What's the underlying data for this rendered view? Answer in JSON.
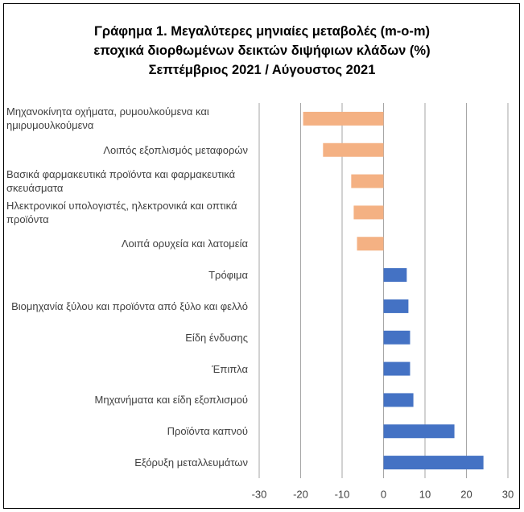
{
  "chart_data": {
    "type": "barh",
    "title": [
      "Γράφημα 1. Μεγαλύτερες μηνιαίες μεταβολές (m-o-m)",
      "εποχικά διορθωμένων δεικτών διψήφιων κλάδων (%)",
      "Σεπτέμβριος 2021 / Αύγουστος 2021"
    ],
    "categories": [
      "Μηχανοκίνητα οχήματα, ρυμουλκούμενα και ημιρυμουλκούμενα",
      "Λοιπός εξοπλισμός μεταφορών",
      "Βασικά φαρμακευτικά προϊόντα και φαρμακευτικά σκευάσματα",
      "Ηλεκτρονικοί υπολογιστές, ηλεκτρονικά και οπτικά προϊόντα",
      "Λοιπά ορυχεία και λατομεία",
      "Τρόφιμα",
      "Βιομηχανία ξύλου και προϊόντα από ξύλο και φελλό",
      "Είδη ένδυσης",
      "Έπιπλα",
      "Μηχανήματα και είδη εξοπλισμού",
      "Προϊόντα καπνού",
      "Εξόρυξη μεταλλευμάτων"
    ],
    "values": [
      -19.4,
      -14.6,
      -7.8,
      -7.2,
      -6.4,
      5.6,
      6.0,
      6.4,
      6.4,
      7.2,
      17.1,
      24.1
    ],
    "colors": [
      "#f4b183",
      "#f4b183",
      "#f4b183",
      "#f4b183",
      "#f4b183",
      "#4472c4",
      "#4472c4",
      "#4472c4",
      "#4472c4",
      "#4472c4",
      "#4472c4",
      "#4472c4"
    ],
    "xlim": [
      -30,
      30
    ],
    "xticks": [
      -30,
      -20,
      -10,
      0,
      10,
      20,
      30
    ],
    "grid": true
  }
}
